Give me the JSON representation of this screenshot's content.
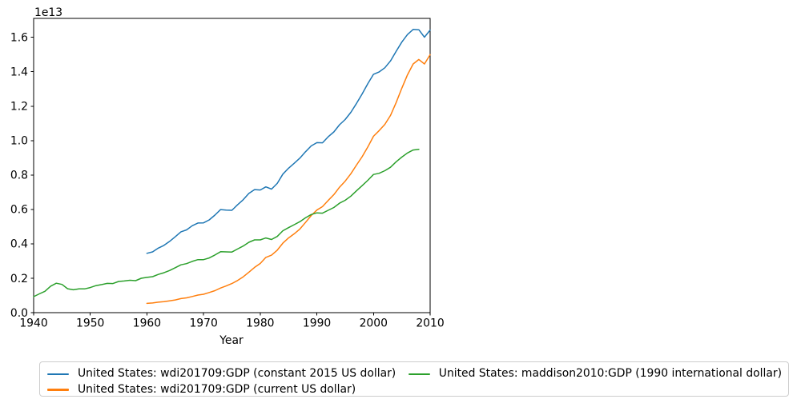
{
  "chart_data": {
    "type": "line",
    "title": "",
    "xlabel": "Year",
    "ylabel": "",
    "y_offset_label": "1e13",
    "grid": false,
    "legend_position": "lower center, below axes, framed box",
    "legend_ncols": 2,
    "xlim": [
      1940,
      2010
    ],
    "ylim": [
      0,
      17100000000000.0
    ],
    "x_ticks": [
      1940,
      1950,
      1960,
      1970,
      1980,
      1990,
      2000,
      2010
    ],
    "y_ticks": [
      {
        "value": 0.0,
        "label": "0.0"
      },
      {
        "value": 2000000000000.0,
        "label": "0.2"
      },
      {
        "value": 4000000000000.0,
        "label": "0.4"
      },
      {
        "value": 6000000000000.0,
        "label": "0.6"
      },
      {
        "value": 8000000000000.0,
        "label": "0.8"
      },
      {
        "value": 10000000000000.0,
        "label": "1.0"
      },
      {
        "value": 12000000000000.0,
        "label": "1.2"
      },
      {
        "value": 14000000000000.0,
        "label": "1.4"
      },
      {
        "value": 16000000000000.0,
        "label": "1.6"
      }
    ],
    "series": [
      {
        "name": "United States: wdi201709:GDP (constant 2015 US dollar)",
        "color": "#1f77b4",
        "x": [
          1960,
          1961,
          1962,
          1963,
          1964,
          1965,
          1966,
          1967,
          1968,
          1969,
          1970,
          1971,
          1972,
          1973,
          1974,
          1975,
          1976,
          1977,
          1978,
          1979,
          1980,
          1981,
          1982,
          1983,
          1984,
          1985,
          1986,
          1987,
          1988,
          1989,
          1990,
          1991,
          1992,
          1993,
          1994,
          1995,
          1996,
          1997,
          1998,
          1999,
          2000,
          2001,
          2002,
          2003,
          2004,
          2005,
          2006,
          2007,
          2008,
          2009,
          2010
        ],
        "y": [
          3450000000000.0,
          3530000000000.0,
          3750000000000.0,
          3910000000000.0,
          4140000000000.0,
          4410000000000.0,
          4700000000000.0,
          4810000000000.0,
          5050000000000.0,
          5210000000000.0,
          5220000000000.0,
          5390000000000.0,
          5670000000000.0,
          5990000000000.0,
          5960000000000.0,
          5950000000000.0,
          6270000000000.0,
          6560000000000.0,
          6930000000000.0,
          7150000000000.0,
          7130000000000.0,
          7310000000000.0,
          7180000000000.0,
          7510000000000.0,
          8050000000000.0,
          8390000000000.0,
          8680000000000.0,
          8980000000000.0,
          9350000000000.0,
          9690000000000.0,
          9880000000000.0,
          9870000000000.0,
          10220000000000.0,
          10500000000000.0,
          10920000000000.0,
          11220000000000.0,
          11640000000000.0,
          12160000000000.0,
          12710000000000.0,
          13310000000000.0,
          13850000000000.0,
          13990000000000.0,
          14230000000000.0,
          14630000000000.0,
          15190000000000.0,
          15720000000000.0,
          16160000000000.0,
          16460000000000.0,
          16440000000000.0,
          16010000000000.0,
          16420000000000.0
        ]
      },
      {
        "name": "United States: wdi201709:GDP (current US dollar)",
        "color": "#ff7f0e",
        "x": [
          1960,
          1961,
          1962,
          1963,
          1964,
          1965,
          1966,
          1967,
          1968,
          1969,
          1970,
          1971,
          1972,
          1973,
          1974,
          1975,
          1976,
          1977,
          1978,
          1979,
          1980,
          1981,
          1982,
          1983,
          1984,
          1985,
          1986,
          1987,
          1988,
          1989,
          1990,
          1991,
          1992,
          1993,
          1994,
          1995,
          1996,
          1997,
          1998,
          1999,
          2000,
          2001,
          2002,
          2003,
          2004,
          2005,
          2006,
          2007,
          2008,
          2009,
          2010
        ],
        "y": [
          540000000000.0,
          560000000000.0,
          610000000000.0,
          640000000000.0,
          690000000000.0,
          740000000000.0,
          820000000000.0,
          860000000000.0,
          940000000000.0,
          1020000000000.0,
          1070000000000.0,
          1170000000000.0,
          1280000000000.0,
          1430000000000.0,
          1550000000000.0,
          1690000000000.0,
          1870000000000.0,
          2080000000000.0,
          2350000000000.0,
          2630000000000.0,
          2860000000000.0,
          3210000000000.0,
          3340000000000.0,
          3630000000000.0,
          4040000000000.0,
          4340000000000.0,
          4580000000000.0,
          4860000000000.0,
          5240000000000.0,
          5640000000000.0,
          5960000000000.0,
          6160000000000.0,
          6520000000000.0,
          6860000000000.0,
          7290000000000.0,
          7640000000000.0,
          8070000000000.0,
          8580000000000.0,
          9060000000000.0,
          9630000000000.0,
          10250000000000.0,
          10580000000000.0,
          10940000000000.0,
          11460000000000.0,
          12210000000000.0,
          13040000000000.0,
          13820000000000.0,
          14450000000000.0,
          14710000000000.0,
          14450000000000.0,
          14990000000000.0
        ]
      },
      {
        "name": "United States: maddison2010:GDP (1990 international dollar)",
        "color": "#2ca02c",
        "x": [
          1940,
          1941,
          1942,
          1943,
          1944,
          1945,
          1946,
          1947,
          1948,
          1949,
          1950,
          1951,
          1952,
          1953,
          1954,
          1955,
          1956,
          1957,
          1958,
          1959,
          1960,
          1961,
          1962,
          1963,
          1964,
          1965,
          1966,
          1967,
          1968,
          1969,
          1970,
          1971,
          1972,
          1973,
          1974,
          1975,
          1976,
          1977,
          1978,
          1979,
          1980,
          1981,
          1982,
          1983,
          1984,
          1985,
          1986,
          1987,
          1988,
          1989,
          1990,
          1991,
          1992,
          1993,
          1994,
          1995,
          1996,
          1997,
          1998,
          1999,
          2000,
          2001,
          2002,
          2003,
          2004,
          2005,
          2006,
          2007,
          2008
        ],
        "y": [
          930000000000.0,
          1090000000000.0,
          1240000000000.0,
          1540000000000.0,
          1710000000000.0,
          1640000000000.0,
          1390000000000.0,
          1330000000000.0,
          1380000000000.0,
          1380000000000.0,
          1460000000000.0,
          1570000000000.0,
          1630000000000.0,
          1700000000000.0,
          1690000000000.0,
          1810000000000.0,
          1840000000000.0,
          1880000000000.0,
          1860000000000.0,
          2000000000000.0,
          2050000000000.0,
          2090000000000.0,
          2220000000000.0,
          2320000000000.0,
          2450000000000.0,
          2610000000000.0,
          2780000000000.0,
          2850000000000.0,
          2980000000000.0,
          3080000000000.0,
          3080000000000.0,
          3180000000000.0,
          3350000000000.0,
          3540000000000.0,
          3530000000000.0,
          3520000000000.0,
          3700000000000.0,
          3870000000000.0,
          4090000000000.0,
          4230000000000.0,
          4230000000000.0,
          4340000000000.0,
          4250000000000.0,
          4430000000000.0,
          4760000000000.0,
          4940000000000.0,
          5110000000000.0,
          5290000000000.0,
          5510000000000.0,
          5700000000000.0,
          5800000000000.0,
          5780000000000.0,
          5950000000000.0,
          6110000000000.0,
          6360000000000.0,
          6530000000000.0,
          6770000000000.0,
          7080000000000.0,
          7380000000000.0,
          7690000000000.0,
          8030000000000.0,
          8100000000000.0,
          8250000000000.0,
          8450000000000.0,
          8770000000000.0,
          9040000000000.0,
          9280000000000.0,
          9450000000000.0,
          9490000000000.0
        ]
      }
    ]
  }
}
